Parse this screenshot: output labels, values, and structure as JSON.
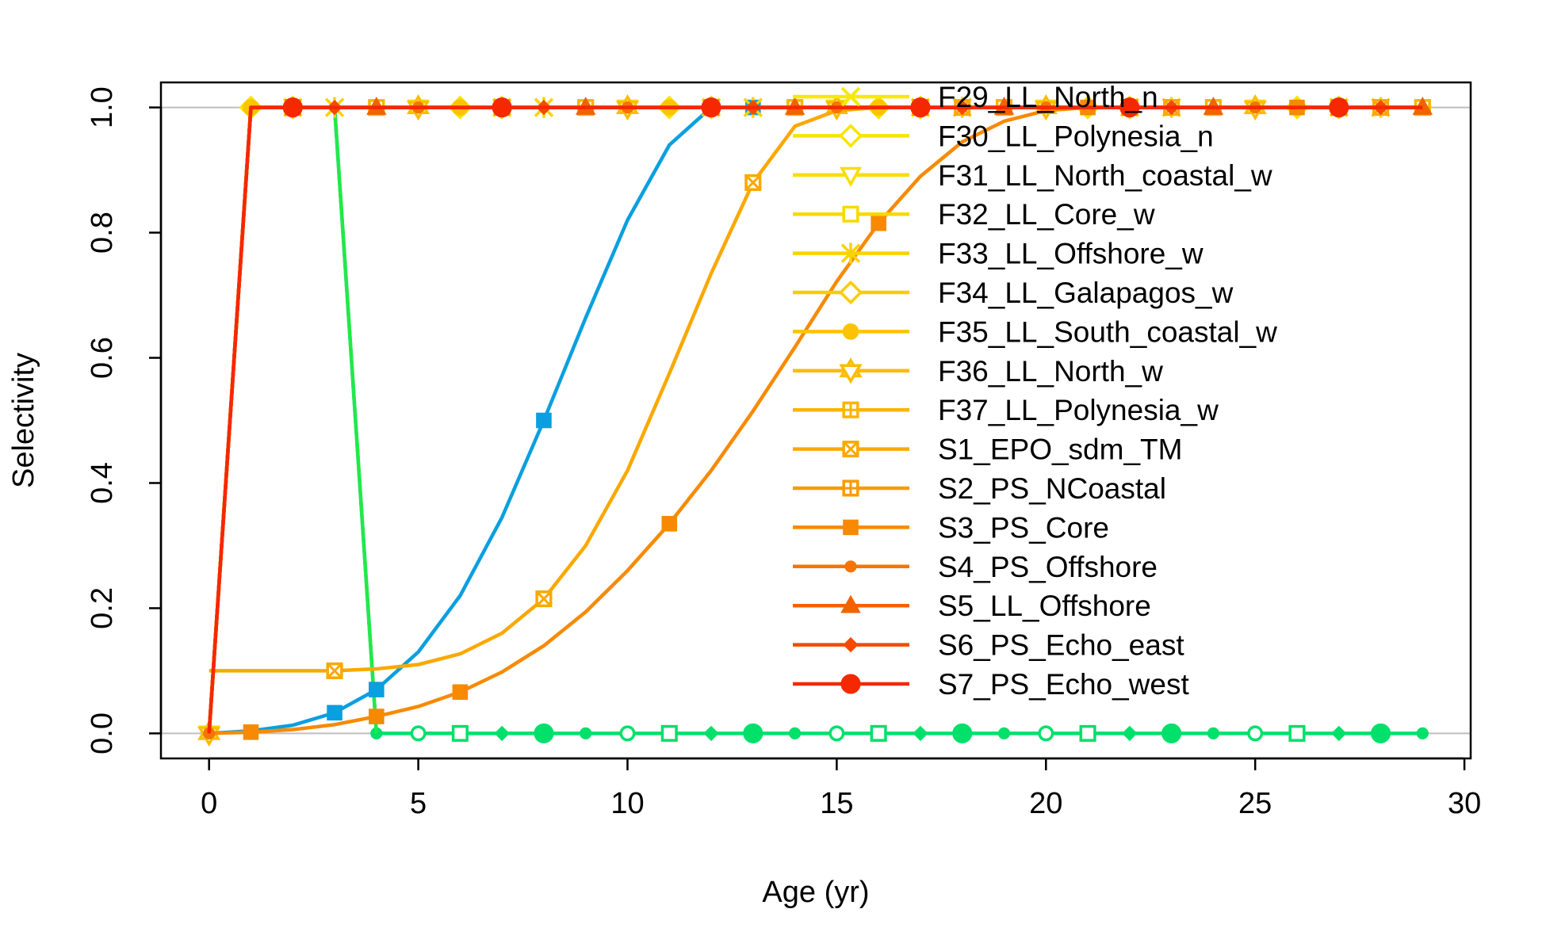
{
  "chart_data": {
    "type": "line",
    "title": "",
    "xlabel": "Age (yr)",
    "ylabel": "Selectivity",
    "xlim": [
      -1.15,
      30.15
    ],
    "ylim": [
      -0.04,
      1.04
    ],
    "xticks": [
      0,
      5,
      10,
      15,
      20,
      25,
      30
    ],
    "xtick_labels": [
      "0",
      "5",
      "10",
      "15",
      "20",
      "25",
      "30"
    ],
    "yticks": [
      0.0,
      0.2,
      0.4,
      0.6,
      0.8,
      1.0
    ],
    "ytick_labels": [
      "0.0",
      "0.2",
      "0.4",
      "0.6",
      "0.8",
      "1.0"
    ],
    "hlines": [
      0,
      1
    ],
    "hline_color": "#bebebe",
    "legend_position": "top-right",
    "x": [
      0,
      1,
      2,
      3,
      4,
      5,
      6,
      7,
      8,
      9,
      10,
      11,
      12,
      13,
      14,
      15,
      16,
      17,
      18,
      19,
      20,
      21,
      22,
      23,
      24,
      25,
      26,
      27,
      28,
      29
    ],
    "series": [
      {
        "key": "teal_zero",
        "color": "#00e06a",
        "marker": "mixed",
        "legend": false,
        "values": [
          0,
          1,
          1,
          1,
          0,
          0,
          0,
          0,
          0,
          0,
          0,
          0,
          0,
          0,
          0,
          0,
          0,
          0,
          0,
          0,
          0,
          0,
          0,
          0,
          0,
          0,
          0,
          0,
          0,
          0
        ]
      },
      {
        "key": "green_drop",
        "color": "#22e84a",
        "marker": "none",
        "legend": false,
        "values": [
          0,
          1,
          1,
          1,
          0,
          null,
          null,
          null,
          null,
          null,
          null,
          null,
          null,
          null,
          null,
          null,
          null,
          null,
          null,
          null,
          null,
          null,
          null,
          null,
          null,
          null,
          null,
          null,
          null,
          null
        ]
      },
      {
        "key": "blue",
        "color": "#0a9fe0",
        "marker": "square",
        "legend": false,
        "values": [
          0,
          0.004,
          0.013,
          0.033,
          0.07,
          0.13,
          0.22,
          0.345,
          0.5,
          0.664,
          0.82,
          0.94,
          1.0,
          1.0,
          1.0,
          1.0,
          1.0,
          1.0,
          1.0,
          1.0,
          1.0,
          1.0,
          1.0,
          1.0,
          1.0,
          1.0,
          1.0,
          1.0,
          1.0,
          1.0
        ]
      },
      {
        "name": "F29_LL_North_n",
        "color": "#f5ea00",
        "marker": "x",
        "values": [
          0,
          1,
          1,
          1,
          1,
          1,
          1,
          1,
          1,
          1,
          1,
          1,
          1,
          1,
          1,
          1,
          1,
          1,
          1,
          1,
          1,
          1,
          1,
          1,
          1,
          1,
          1,
          1,
          1,
          1
        ]
      },
      {
        "name": "F30_LL_Polynesia_n",
        "color": "#f7e400",
        "marker": "diamond-open",
        "values": [
          0,
          1,
          1,
          1,
          1,
          1,
          1,
          1,
          1,
          1,
          1,
          1,
          1,
          1,
          1,
          1,
          1,
          1,
          1,
          1,
          1,
          1,
          1,
          1,
          1,
          1,
          1,
          1,
          1,
          1
        ]
      },
      {
        "name": "F31_LL_North_coastal_w",
        "color": "#f8de00",
        "marker": "triangle-down-open",
        "values": [
          0,
          1,
          1,
          1,
          1,
          1,
          1,
          1,
          1,
          1,
          1,
          1,
          1,
          1,
          1,
          1,
          1,
          1,
          1,
          1,
          1,
          1,
          1,
          1,
          1,
          1,
          1,
          1,
          1,
          1
        ]
      },
      {
        "name": "F32_LL_Core_w",
        "color": "#f9d800",
        "marker": "square-open",
        "values": [
          0,
          1,
          1,
          1,
          1,
          1,
          1,
          1,
          1,
          1,
          1,
          1,
          1,
          1,
          1,
          1,
          1,
          1,
          1,
          1,
          1,
          1,
          1,
          1,
          1,
          1,
          1,
          1,
          1,
          1
        ]
      },
      {
        "name": "F33_LL_Offshore_w",
        "color": "#fad200",
        "marker": "asterisk",
        "values": [
          0,
          1,
          1,
          1,
          1,
          1,
          1,
          1,
          1,
          1,
          1,
          1,
          1,
          1,
          1,
          1,
          1,
          1,
          1,
          1,
          1,
          1,
          1,
          1,
          1,
          1,
          1,
          1,
          1,
          1
        ]
      },
      {
        "name": "F34_LL_Galapagos_w",
        "color": "#fbcc00",
        "marker": "diamond-open",
        "values": [
          0,
          1,
          1,
          1,
          1,
          1,
          1,
          1,
          1,
          1,
          1,
          1,
          1,
          1,
          1,
          1,
          1,
          1,
          1,
          1,
          1,
          1,
          1,
          1,
          1,
          1,
          1,
          1,
          1,
          1
        ]
      },
      {
        "name": "F35_LL_South_coastal_w",
        "color": "#fcc400",
        "marker": "circle",
        "values": [
          0,
          1,
          1,
          1,
          1,
          1,
          1,
          1,
          1,
          1,
          1,
          1,
          1,
          1,
          1,
          1,
          1,
          1,
          1,
          1,
          1,
          1,
          1,
          1,
          1,
          1,
          1,
          1,
          1,
          1
        ]
      },
      {
        "name": "F36_LL_North_w",
        "color": "#fcbc00",
        "marker": "star",
        "values": [
          0,
          1,
          1,
          1,
          1,
          1,
          1,
          1,
          1,
          1,
          1,
          1,
          1,
          1,
          1,
          1,
          1,
          1,
          1,
          1,
          1,
          1,
          1,
          1,
          1,
          1,
          1,
          1,
          1,
          1
        ]
      },
      {
        "name": "F37_LL_Polynesia_w",
        "color": "#fcb400",
        "marker": "square-plus",
        "values": [
          0,
          1,
          1,
          1,
          1,
          1,
          1,
          1,
          1,
          1,
          1,
          1,
          1,
          1,
          1,
          1,
          1,
          1,
          1,
          1,
          1,
          1,
          1,
          1,
          1,
          1,
          1,
          1,
          1,
          1
        ]
      },
      {
        "name": "S1_EPO_sdm_TM",
        "color": "#fba800",
        "marker": "square-x",
        "values": [
          0.1,
          0.1,
          0.1,
          0.1,
          0.103,
          0.11,
          0.127,
          0.16,
          0.215,
          0.3,
          0.42,
          0.575,
          0.735,
          0.88,
          0.97,
          0.995,
          1.0,
          1.0,
          1.0,
          1.0,
          1.0,
          1.0,
          1.0,
          1.0,
          1.0,
          1.0,
          1.0,
          1.0,
          1.0,
          1.0
        ]
      },
      {
        "name": "S2_PS_NCoastal",
        "color": "#f99b00",
        "marker": "square-plus",
        "values": [
          0,
          1,
          1,
          1,
          1,
          1,
          1,
          1,
          1,
          1,
          1,
          1,
          1,
          1,
          1,
          1,
          1,
          1,
          1,
          1,
          1,
          1,
          1,
          1,
          1,
          1,
          1,
          1,
          1,
          1
        ]
      },
      {
        "name": "S3_PS_Core",
        "color": "#f78a00",
        "marker": "square",
        "values": [
          0,
          0.002,
          0.006,
          0.014,
          0.027,
          0.043,
          0.066,
          0.098,
          0.14,
          0.194,
          0.26,
          0.335,
          0.42,
          0.515,
          0.617,
          0.722,
          0.815,
          0.89,
          0.945,
          0.978,
          0.995,
          1.0,
          1.0,
          1.0,
          1.0,
          1.0,
          1.0,
          1.0,
          1.0,
          1.0
        ]
      },
      {
        "name": "S4_PS_Offshore",
        "color": "#f57500",
        "marker": "circle-small",
        "values": [
          0,
          1,
          1,
          1,
          1,
          1,
          1,
          1,
          1,
          1,
          1,
          1,
          1,
          1,
          1,
          1,
          1,
          1,
          1,
          1,
          1,
          1,
          1,
          1,
          1,
          1,
          1,
          1,
          1,
          1
        ]
      },
      {
        "name": "S5_LL_Offshore",
        "color": "#f46200",
        "marker": "triangle",
        "values": [
          0,
          1,
          1,
          1,
          1,
          1,
          1,
          1,
          1,
          1,
          1,
          1,
          1,
          1,
          1,
          1,
          1,
          1,
          1,
          1,
          1,
          1,
          1,
          1,
          1,
          1,
          1,
          1,
          1,
          1
        ]
      },
      {
        "name": "S6_PS_Echo_east",
        "color": "#f44a00",
        "marker": "diamond-small",
        "values": [
          0,
          1,
          1,
          1,
          1,
          1,
          1,
          1,
          1,
          1,
          1,
          1,
          1,
          1,
          1,
          1,
          1,
          1,
          1,
          1,
          1,
          1,
          1,
          1,
          1,
          1,
          1,
          1,
          1,
          1
        ]
      },
      {
        "name": "S7_PS_Echo_west",
        "color": "#f52800",
        "marker": "circle-large",
        "values": [
          0,
          1,
          1,
          1,
          1,
          1,
          1,
          1,
          1,
          1,
          1,
          1,
          1,
          1,
          1,
          1,
          1,
          1,
          1,
          1,
          1,
          1,
          1,
          1,
          1,
          1,
          1,
          1,
          1,
          1
        ]
      }
    ]
  }
}
